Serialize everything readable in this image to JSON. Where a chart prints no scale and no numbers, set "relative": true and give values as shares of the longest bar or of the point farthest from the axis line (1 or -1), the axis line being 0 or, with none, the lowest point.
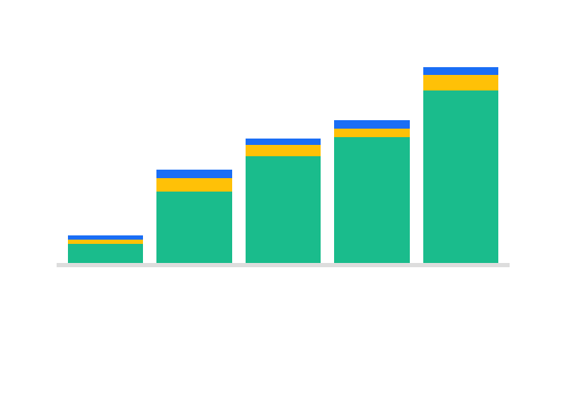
{
  "chart_data": {
    "type": "bar",
    "stacked": true,
    "relative": true,
    "categories": [
      null,
      null,
      null,
      null,
      null
    ],
    "series": [
      {
        "color": "#1abc8c",
        "values": [
          0.098,
          0.364,
          0.545,
          0.643,
          0.881
        ]
      },
      {
        "color": "#ffc107",
        "values": [
          0.021,
          0.07,
          0.056,
          0.042,
          0.077
        ]
      },
      {
        "color": "#1a6ef5",
        "values": [
          0.021,
          0.042,
          0.035,
          0.042,
          0.042
        ]
      }
    ]
  }
}
